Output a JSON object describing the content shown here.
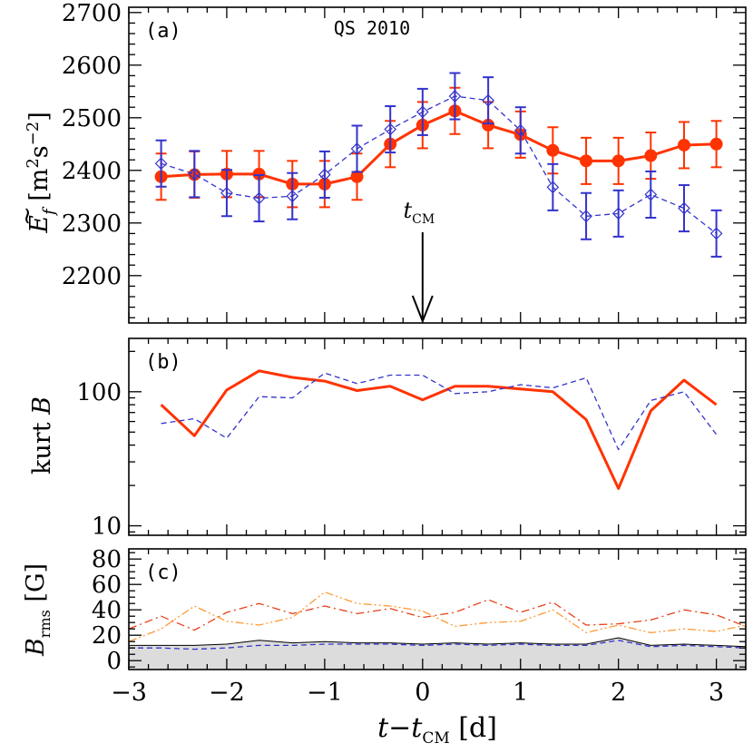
{
  "chart_data": [
    {
      "type": "line",
      "panel_label": "(a)",
      "title": "QS 2010",
      "ylabel": "Ẽ_f [m²s⁻²]",
      "ylabel_parts": {
        "symbol": "E",
        "tilde": "~",
        "sub": "f",
        "units_open": "[m",
        "sup1": "2",
        "mid": "s",
        "sup2": "−2",
        "units_close": "]"
      },
      "xlim": [
        -3,
        3.3
      ],
      "ylim": [
        2110,
        2710
      ],
      "yticks": [
        2200,
        2300,
        2400,
        2500,
        2600,
        2700
      ],
      "ytick_labels": [
        "2200",
        "2300",
        "2400",
        "2500",
        "2600",
        "2700"
      ],
      "annotation": {
        "text": "t",
        "sub": "CM",
        "x": 0
      },
      "series": [
        {
          "color": "#ff3300",
          "style": "solid-markers-filled",
          "x": [
            -2.67,
            -2.33,
            -2.0,
            -1.67,
            -1.33,
            -1.0,
            -0.67,
            -0.33,
            0.0,
            0.33,
            0.67,
            1.0,
            1.33,
            1.67,
            2.0,
            2.33,
            2.67,
            3.0
          ],
          "y": [
            2388,
            2392,
            2393,
            2393,
            2374,
            2374,
            2388,
            2450,
            2486,
            2513,
            2486,
            2468,
            2438,
            2418,
            2418,
            2428,
            2448,
            2450
          ],
          "err": [
            44,
            44,
            44,
            44,
            44,
            44,
            44,
            44,
            44,
            44,
            44,
            44,
            44,
            44,
            44,
            44,
            44,
            44
          ]
        },
        {
          "color": "#3333cc",
          "style": "dashed-markers-diamond",
          "x": [
            -2.67,
            -2.33,
            -2.0,
            -1.67,
            -1.33,
            -1.0,
            -0.67,
            -0.33,
            0.0,
            0.33,
            0.67,
            1.0,
            1.33,
            1.67,
            2.0,
            2.33,
            2.67,
            3.0
          ],
          "y": [
            2413,
            2393,
            2357,
            2347,
            2351,
            2392,
            2441,
            2478,
            2511,
            2541,
            2533,
            2476,
            2368,
            2313,
            2318,
            2354,
            2328,
            2280
          ],
          "err": [
            44,
            44,
            44,
            44,
            44,
            44,
            44,
            44,
            44,
            44,
            44,
            44,
            44,
            44,
            44,
            44,
            44,
            44
          ]
        }
      ]
    },
    {
      "type": "line",
      "panel_label": "(b)",
      "ylabel": "kurt B",
      "ylabel_parts": {
        "text": "kurt",
        "italic": "B"
      },
      "yscale": "log",
      "xlim": [
        -3,
        3.3
      ],
      "ylim": [
        8.5,
        250
      ],
      "yticks": [
        10,
        100
      ],
      "ytick_labels": [
        "10",
        "100"
      ],
      "series": [
        {
          "color": "#ff3300",
          "style": "solid",
          "x": [
            -2.67,
            -2.33,
            -2.0,
            -1.67,
            -1.33,
            -1.0,
            -0.67,
            -0.33,
            0.0,
            0.33,
            0.67,
            1.0,
            1.33,
            1.67,
            2.0,
            2.33,
            2.67,
            3.0
          ],
          "y": [
            80,
            47,
            103,
            143,
            128,
            120,
            102,
            110,
            87,
            110,
            110,
            105,
            100,
            62,
            19,
            72,
            122,
            80
          ]
        },
        {
          "color": "#3333cc",
          "style": "dashed",
          "x": [
            -2.67,
            -2.33,
            -2.0,
            -1.67,
            -1.33,
            -1.0,
            -0.67,
            -0.33,
            0.0,
            0.33,
            0.67,
            1.0,
            1.33,
            1.67,
            2.0,
            2.33,
            2.67,
            3.0
          ],
          "y": [
            58,
            63,
            45,
            92,
            90,
            138,
            115,
            133,
            133,
            97,
            100,
            113,
            107,
            127,
            37,
            86,
            100,
            48
          ]
        }
      ]
    },
    {
      "type": "area",
      "panel_label": "(c)",
      "ylabel": "B_rms [G]",
      "ylabel_parts": {
        "symbol": "B",
        "sub": "rms",
        "units": "[G]"
      },
      "xlabel": "t−t_CM [d]",
      "xlabel_parts": {
        "t1": "t",
        "minus": "−",
        "t2": "t",
        "sub": "CM",
        "units": "[d]"
      },
      "xlim": [
        -3,
        3.3
      ],
      "ylim": [
        -7,
        88
      ],
      "xticks": [
        -3,
        -2,
        -1,
        0,
        1,
        2,
        3
      ],
      "xtick_labels": [
        "−3",
        "−2",
        "−1",
        "0",
        "1",
        "2",
        "3"
      ],
      "yticks": [
        0,
        20,
        40,
        60,
        80
      ],
      "ytick_labels": [
        "0",
        "20",
        "40",
        "60",
        "80"
      ],
      "series": [
        {
          "color": "#000000",
          "style": "solid-filled",
          "x": [
            -3.0,
            -2.67,
            -2.33,
            -2.0,
            -1.67,
            -1.33,
            -1.0,
            -0.67,
            -0.33,
            0.0,
            0.33,
            0.67,
            1.0,
            1.33,
            1.67,
            2.0,
            2.33,
            2.67,
            3.0,
            3.3
          ],
          "y": [
            12,
            12,
            12,
            13,
            16,
            14,
            15,
            14,
            14,
            13,
            14,
            13,
            14,
            13,
            13,
            18,
            12,
            13,
            12,
            11
          ]
        },
        {
          "color": "#3333cc",
          "style": "dashed",
          "x": [
            -3.0,
            -2.67,
            -2.33,
            -2.0,
            -1.67,
            -1.33,
            -1.0,
            -0.67,
            -0.33,
            0.0,
            0.33,
            0.67,
            1.0,
            1.33,
            1.67,
            2.0,
            2.33,
            2.67,
            3.0,
            3.3
          ],
          "y": [
            10,
            10,
            9,
            10,
            12,
            12,
            13,
            13,
            13,
            12,
            13,
            12,
            13,
            12,
            12,
            16,
            11,
            12,
            11,
            10
          ]
        },
        {
          "color": "#e8401a",
          "style": "dash-dot",
          "x": [
            -3.0,
            -2.67,
            -2.33,
            -2.0,
            -1.67,
            -1.33,
            -1.0,
            -0.67,
            -0.33,
            0.0,
            0.33,
            0.67,
            1.0,
            1.33,
            1.67,
            2.0,
            2.33,
            2.67,
            3.0,
            3.3
          ],
          "y": [
            25,
            35,
            24,
            38,
            45,
            37,
            43,
            37,
            41,
            34,
            38,
            48,
            38,
            46,
            28,
            29,
            32,
            40,
            36,
            27
          ]
        },
        {
          "color": "#ff9933",
          "style": "dash-dot-dot",
          "x": [
            -3.0,
            -2.67,
            -2.33,
            -2.0,
            -1.67,
            -1.33,
            -1.0,
            -0.67,
            -0.33,
            0.0,
            0.33,
            0.67,
            1.0,
            1.33,
            1.67,
            2.0,
            2.33,
            2.67,
            3.0,
            3.3
          ],
          "y": [
            15,
            25,
            43,
            31,
            28,
            34,
            54,
            45,
            43,
            39,
            27,
            30,
            31,
            40,
            22,
            28,
            22,
            25,
            23,
            28
          ]
        }
      ]
    }
  ]
}
